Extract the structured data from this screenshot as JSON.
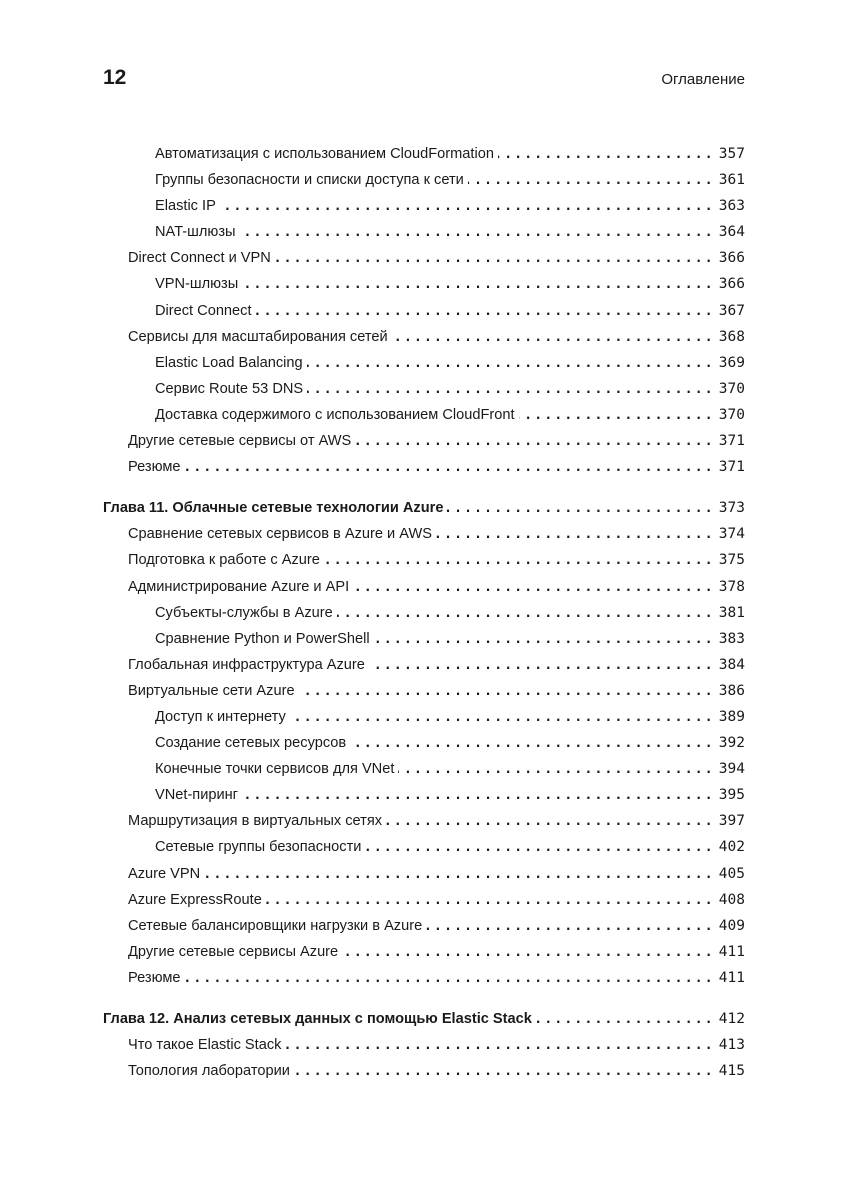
{
  "header": {
    "page_number": "12",
    "running_title": "Оглавление"
  },
  "groups": [
    {
      "entries": [
        {
          "level": 2,
          "title": "Автоматизация с использованием CloudFormation",
          "page": "357"
        },
        {
          "level": 2,
          "title": "Группы безопасности и списки доступа к сети",
          "page": "361"
        },
        {
          "level": 2,
          "title": "Elastic IP",
          "page": "363"
        },
        {
          "level": 2,
          "title": "NAT-шлюзы",
          "page": "364"
        },
        {
          "level": 1,
          "title": "Direct Connect и VPN",
          "page": "366"
        },
        {
          "level": 2,
          "title": "VPN-шлюзы",
          "page": "366"
        },
        {
          "level": 2,
          "title": "Direct Connect",
          "page": "367"
        },
        {
          "level": 1,
          "title": "Сервисы для масштабирования сетей",
          "page": "368"
        },
        {
          "level": 2,
          "title": "Elastic Load Balancing",
          "page": "369"
        },
        {
          "level": 2,
          "title": "Сервис Route 53 DNS",
          "page": "370"
        },
        {
          "level": 2,
          "title": "Доставка содержимого с использованием CloudFront",
          "page": "370"
        },
        {
          "level": 1,
          "title": "Другие сетевые сервисы от AWS",
          "page": "371"
        },
        {
          "level": 1,
          "title": "Резюме",
          "page": "371"
        }
      ]
    },
    {
      "entries": [
        {
          "level": 0,
          "title": "Глава 11. Облачные сетевые технологии Azure",
          "page": "373"
        },
        {
          "level": 1,
          "title": "Сравнение сетевых сервисов в Azure и AWS",
          "page": "374"
        },
        {
          "level": 1,
          "title": "Подготовка к работе с Azure",
          "page": "375"
        },
        {
          "level": 1,
          "title": "Администрирование Azure и API",
          "page": "378"
        },
        {
          "level": 2,
          "title": "Субъекты-службы в Azure",
          "page": "381"
        },
        {
          "level": 2,
          "title": "Сравнение Python и PowerShell",
          "page": "383"
        },
        {
          "level": 1,
          "title": "Глобальная инфраструктура Azure",
          "page": "384"
        },
        {
          "level": 1,
          "title": "Виртуальные сети Azure",
          "page": "386"
        },
        {
          "level": 2,
          "title": "Доступ к интернету",
          "page": "389"
        },
        {
          "level": 2,
          "title": "Создание сетевых ресурсов",
          "page": "392"
        },
        {
          "level": 2,
          "title": "Конечные точки сервисов для VNet",
          "page": "394"
        },
        {
          "level": 2,
          "title": "VNet-пиринг",
          "page": "395"
        },
        {
          "level": 1,
          "title": "Маршрутизация в виртуальных сетях",
          "page": "397"
        },
        {
          "level": 2,
          "title": "Сетевые группы безопасности",
          "page": "402"
        },
        {
          "level": 1,
          "title": "Azure VPN",
          "page": "405"
        },
        {
          "level": 1,
          "title": "Azure ExpressRoute",
          "page": "408"
        },
        {
          "level": 1,
          "title": "Сетевые балансировщики нагрузки в Azure",
          "page": "409"
        },
        {
          "level": 1,
          "title": "Другие сетевые сервисы Azure",
          "page": "411"
        },
        {
          "level": 1,
          "title": "Резюме",
          "page": "411"
        }
      ]
    },
    {
      "entries": [
        {
          "level": 0,
          "title": "Глава 12. Анализ сетевых данных с помощью Elastic Stack",
          "page": "412"
        },
        {
          "level": 1,
          "title": "Что такое Elastic Stack",
          "page": "413"
        },
        {
          "level": 1,
          "title": "Топология лаборатории",
          "page": "415"
        }
      ]
    }
  ]
}
